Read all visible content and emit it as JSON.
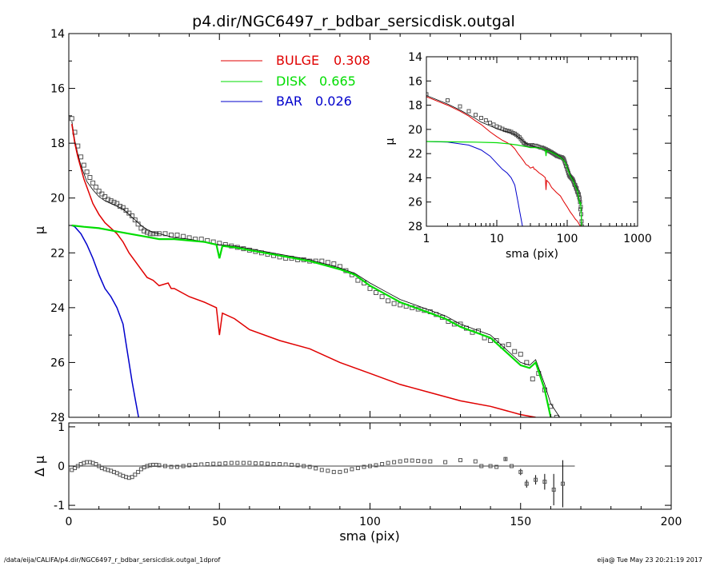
{
  "title": "p4.dir/NGC6497_r_bdbar_sersicdisk.outgal",
  "footer_left": "/data/eija/CALIFA/p4.dir/NGC6497_r_bdbar_sersicdisk.outgal_1dprof",
  "footer_right": "eija@  Tue May 23 20:21:19 2017",
  "colors": {
    "bulge": "#e00000",
    "disk": "#00dd00",
    "bar": "#0000cc",
    "model": "#000000",
    "data": "#555555"
  },
  "chart_data": [
    {
      "type": "line",
      "name": "main-profile",
      "xlabel": "sma (pix)",
      "ylabel": "μ",
      "xlim": [
        0,
        200
      ],
      "ylim": [
        28,
        14
      ],
      "xticks": [
        0,
        50,
        100,
        150,
        200
      ],
      "yticks": [
        14,
        16,
        18,
        20,
        22,
        24,
        26,
        28
      ],
      "legend": [
        {
          "name": "BULGE",
          "value": "0.308",
          "color": "#e00000"
        },
        {
          "name": "DISK",
          "value": "0.665",
          "color": "#00dd00"
        },
        {
          "name": "BAR",
          "value": "0.026",
          "color": "#0000cc"
        }
      ],
      "series": [
        {
          "key": "bulge",
          "x": [
            1,
            2,
            3,
            4,
            5,
            6,
            8,
            10,
            12,
            14,
            16,
            18,
            20,
            22,
            24,
            26,
            28,
            30,
            33,
            34,
            35,
            40,
            45,
            49,
            50,
            51,
            55,
            60,
            70,
            80,
            90,
            100,
            110,
            120,
            130,
            140,
            150,
            155
          ],
          "y": [
            17.3,
            18.0,
            18.5,
            18.9,
            19.3,
            19.6,
            20.2,
            20.6,
            20.9,
            21.1,
            21.3,
            21.6,
            22.0,
            22.3,
            22.6,
            22.9,
            23.0,
            23.2,
            23.1,
            23.3,
            23.3,
            23.6,
            23.8,
            24.0,
            25.0,
            24.2,
            24.4,
            24.8,
            25.2,
            25.5,
            26.0,
            26.4,
            26.8,
            27.1,
            27.4,
            27.6,
            27.9,
            28.0
          ]
        },
        {
          "key": "disk",
          "x": [
            1,
            5,
            10,
            15,
            20,
            25,
            30,
            35,
            40,
            45,
            49,
            50,
            51,
            55,
            60,
            70,
            80,
            90,
            95,
            100,
            105,
            110,
            115,
            120,
            125,
            130,
            135,
            140,
            145,
            150,
            153,
            155,
            158,
            160,
            162
          ],
          "y": [
            21.0,
            21.05,
            21.1,
            21.2,
            21.3,
            21.4,
            21.5,
            21.5,
            21.55,
            21.6,
            21.7,
            22.2,
            21.75,
            21.8,
            21.9,
            22.1,
            22.3,
            22.6,
            22.8,
            23.2,
            23.5,
            23.8,
            24.0,
            24.2,
            24.4,
            24.7,
            24.9,
            25.1,
            25.6,
            26.1,
            26.2,
            26.0,
            27.0,
            28.0,
            28.5
          ]
        },
        {
          "key": "bar",
          "x": [
            1,
            2,
            4,
            6,
            8,
            10,
            12,
            14,
            16,
            18,
            19,
            20,
            21,
            22,
            23,
            24
          ],
          "y": [
            21.0,
            21.05,
            21.3,
            21.7,
            22.2,
            22.8,
            23.3,
            23.6,
            24.0,
            24.6,
            25.3,
            26.0,
            26.7,
            27.3,
            27.9,
            28.5
          ]
        },
        {
          "key": "model",
          "x": [
            1,
            2,
            3,
            4,
            5,
            6,
            8,
            10,
            12,
            14,
            16,
            18,
            20,
            22,
            24,
            26,
            28,
            30,
            35,
            40,
            45,
            50,
            55,
            60,
            70,
            80,
            90,
            95,
            100,
            105,
            110,
            115,
            120,
            125,
            130,
            135,
            140,
            145,
            150,
            153,
            155,
            158,
            160,
            163
          ],
          "y": [
            17.2,
            17.9,
            18.4,
            18.8,
            19.1,
            19.4,
            19.7,
            19.95,
            20.1,
            20.2,
            20.3,
            20.4,
            20.6,
            20.8,
            21.0,
            21.15,
            21.25,
            21.3,
            21.45,
            21.5,
            21.6,
            21.7,
            21.75,
            21.85,
            22.05,
            22.25,
            22.55,
            22.75,
            23.1,
            23.4,
            23.7,
            23.9,
            24.1,
            24.3,
            24.6,
            24.8,
            25.0,
            25.5,
            26.0,
            26.1,
            25.9,
            26.8,
            27.5,
            28.0
          ]
        },
        {
          "key": "data",
          "x": [
            1,
            2,
            3,
            4,
            5,
            6,
            7,
            8,
            9,
            10,
            11,
            12,
            13,
            14,
            15,
            16,
            17,
            18,
            19,
            20,
            21,
            22,
            23,
            24,
            25,
            26,
            27,
            28,
            29,
            30,
            32,
            34,
            36,
            38,
            40,
            42,
            44,
            46,
            48,
            50,
            52,
            54,
            56,
            58,
            60,
            62,
            64,
            66,
            68,
            70,
            72,
            74,
            76,
            78,
            80,
            82,
            84,
            86,
            88,
            90,
            92,
            94,
            96,
            98,
            100,
            102,
            104,
            106,
            108,
            110,
            112,
            114,
            116,
            118,
            120,
            122,
            124,
            126,
            128,
            130,
            132,
            134,
            136,
            138,
            140,
            142,
            144,
            146,
            148,
            150,
            152,
            154,
            156,
            158,
            160,
            162,
            164
          ],
          "y": [
            17.1,
            17.6,
            18.1,
            18.5,
            18.8,
            19.05,
            19.25,
            19.45,
            19.6,
            19.75,
            19.85,
            19.95,
            20.05,
            20.1,
            20.15,
            20.2,
            20.3,
            20.35,
            20.45,
            20.55,
            20.65,
            20.8,
            20.95,
            21.1,
            21.2,
            21.25,
            21.3,
            21.3,
            21.3,
            21.3,
            21.3,
            21.35,
            21.35,
            21.4,
            21.45,
            21.5,
            21.5,
            21.55,
            21.6,
            21.65,
            21.7,
            21.75,
            21.8,
            21.85,
            21.9,
            21.95,
            22.0,
            22.05,
            22.1,
            22.15,
            22.2,
            22.2,
            22.25,
            22.25,
            22.3,
            22.3,
            22.3,
            22.35,
            22.4,
            22.5,
            22.65,
            22.8,
            23.0,
            23.1,
            23.3,
            23.45,
            23.6,
            23.75,
            23.85,
            23.9,
            23.95,
            24.0,
            24.05,
            24.1,
            24.15,
            24.25,
            24.35,
            24.5,
            24.6,
            24.6,
            24.75,
            24.9,
            24.85,
            25.1,
            25.2,
            25.2,
            25.4,
            25.35,
            25.6,
            25.7,
            26.0,
            26.6,
            26.4,
            27.0,
            27.6,
            28.0,
            28.5
          ]
        }
      ]
    },
    {
      "type": "scatter",
      "name": "residuals",
      "xlabel": "sma (pix)",
      "ylabel": "Δ μ",
      "xlim": [
        0,
        200
      ],
      "ylim": [
        -1.1,
        1.1
      ],
      "xticks": [
        0,
        50,
        100,
        150,
        200
      ],
      "yticks": [
        -1,
        0,
        1
      ],
      "x": [
        1,
        2,
        3,
        4,
        5,
        6,
        7,
        8,
        9,
        10,
        11,
        12,
        13,
        14,
        15,
        16,
        17,
        18,
        19,
        20,
        21,
        22,
        23,
        24,
        25,
        26,
        27,
        28,
        29,
        30,
        32,
        34,
        36,
        38,
        40,
        42,
        44,
        46,
        48,
        50,
        52,
        54,
        56,
        58,
        60,
        62,
        64,
        66,
        68,
        70,
        72,
        74,
        76,
        78,
        80,
        82,
        84,
        86,
        88,
        90,
        92,
        94,
        96,
        98,
        100,
        102,
        104,
        106,
        108,
        110,
        112,
        114,
        116,
        118,
        120,
        125,
        130,
        135,
        137,
        140,
        142,
        145,
        147,
        150,
        152,
        155,
        158,
        161,
        164
      ],
      "y": [
        -0.1,
        -0.05,
        0.0,
        0.05,
        0.08,
        0.1,
        0.1,
        0.08,
        0.05,
        0.0,
        -0.05,
        -0.08,
        -0.1,
        -0.12,
        -0.15,
        -0.18,
        -0.22,
        -0.25,
        -0.28,
        -0.3,
        -0.28,
        -0.22,
        -0.15,
        -0.08,
        -0.03,
        0.0,
        0.02,
        0.03,
        0.03,
        0.02,
        0.0,
        -0.02,
        -0.02,
        0.0,
        0.02,
        0.03,
        0.04,
        0.05,
        0.06,
        0.06,
        0.07,
        0.08,
        0.08,
        0.08,
        0.08,
        0.07,
        0.07,
        0.06,
        0.05,
        0.05,
        0.04,
        0.03,
        0.02,
        0.0,
        -0.02,
        -0.06,
        -0.1,
        -0.12,
        -0.15,
        -0.15,
        -0.12,
        -0.08,
        -0.05,
        -0.02,
        0.0,
        0.02,
        0.05,
        0.08,
        0.1,
        0.12,
        0.14,
        0.14,
        0.13,
        0.12,
        0.12,
        0.1,
        0.15,
        0.12,
        0.0,
        0.0,
        -0.02,
        0.18,
        0.0,
        -0.15,
        -0.45,
        -0.35,
        -0.4,
        -0.6,
        -0.45
      ],
      "err": [
        0,
        0,
        0,
        0,
        0,
        0,
        0,
        0,
        0,
        0,
        0,
        0,
        0,
        0,
        0,
        0,
        0,
        0,
        0,
        0,
        0,
        0,
        0,
        0,
        0,
        0,
        0,
        0,
        0,
        0,
        0,
        0,
        0,
        0,
        0,
        0,
        0,
        0,
        0,
        0,
        0,
        0,
        0,
        0,
        0,
        0,
        0,
        0,
        0,
        0,
        0,
        0,
        0,
        0,
        0,
        0,
        0,
        0,
        0,
        0,
        0,
        0,
        0,
        0,
        0,
        0,
        0,
        0,
        0,
        0,
        0,
        0,
        0,
        0,
        0,
        0,
        0,
        0,
        0,
        0,
        0,
        0.05,
        0,
        0.08,
        0.1,
        0.12,
        0.2,
        0.4,
        0.6
      ]
    },
    {
      "type": "line",
      "name": "inset-log-profile",
      "xlabel": "sma (pix)",
      "ylabel": "μ",
      "xscale": "log",
      "xlim": [
        1,
        1000
      ],
      "ylim": [
        28,
        14
      ],
      "xticks": [
        1,
        10,
        100,
        1000
      ],
      "yticks": [
        14,
        16,
        18,
        20,
        22,
        24,
        26,
        28
      ]
    }
  ]
}
